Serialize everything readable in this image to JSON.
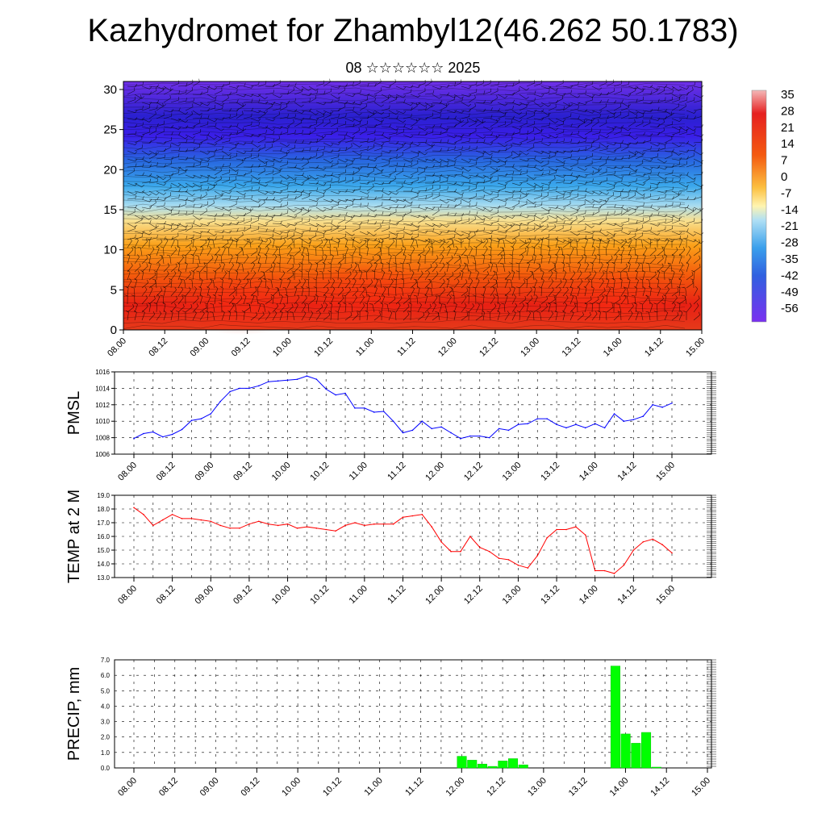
{
  "title": "Kazhydromet for Zhambyl12(46.262 50.1783)",
  "subtitle": "08 ☆☆☆☆☆☆ 2025",
  "time_labels": [
    "08.00",
    "08.12",
    "09.00",
    "09.12",
    "10.00",
    "10.12",
    "11.00",
    "11.12",
    "12.00",
    "12.12",
    "13.00",
    "13.12",
    "14.00",
    "14.12",
    "15.00"
  ],
  "colorbar_labels": [
    "35",
    "28",
    "21",
    "14",
    "7",
    "0",
    "-7",
    "-14",
    "-21",
    "-28",
    "-35",
    "-42",
    "-49",
    "-56"
  ],
  "colors": {
    "pmsl_line": "#0000ff",
    "temp_line": "#ff0000",
    "precip_bar": "#00ff00"
  },
  "chart_data": [
    {
      "type": "heatmap",
      "description_var": "temperature cross-section with wind barbs",
      "x_ticks": [
        "08.00",
        "08.12",
        "09.00",
        "09.12",
        "10.00",
        "10.12",
        "11.00",
        "11.12",
        "12.00",
        "12.12",
        "13.00",
        "13.12",
        "14.00",
        "14.12",
        "15.00"
      ],
      "y_ticks": [
        "0",
        "5",
        "10",
        "15",
        "20",
        "25",
        "30"
      ],
      "ylim": [
        0,
        31
      ],
      "colorbar": [
        "35",
        "28",
        "21",
        "14",
        "7",
        "0",
        "-7",
        "-14",
        "-21",
        "-28",
        "-35",
        "-42",
        "-49",
        "-56"
      ],
      "vertical_profile": [
        {
          "y": 0,
          "value": 24
        },
        {
          "y": 4,
          "value": 22
        },
        {
          "y": 8,
          "value": 15
        },
        {
          "y": 12,
          "value": 5
        },
        {
          "y": 15,
          "value": -10
        },
        {
          "y": 18,
          "value": -25
        },
        {
          "y": 21,
          "value": -40
        },
        {
          "y": 24,
          "value": -52
        },
        {
          "y": 26,
          "value": -58
        },
        {
          "y": 28,
          "value": -54
        },
        {
          "y": 31,
          "value": -52
        }
      ]
    },
    {
      "type": "line",
      "ylabel": "PMSL",
      "ylim": [
        1006,
        1016
      ],
      "y_ticks": [
        "1016",
        "1014",
        "1012",
        "1010",
        "1008",
        "1006"
      ],
      "x": [
        "08.00",
        "08.03",
        "08.06",
        "08.09",
        "08.12",
        "08.15",
        "08.18",
        "08.21",
        "09.00",
        "09.03",
        "09.06",
        "09.09",
        "09.12",
        "09.15",
        "09.18",
        "09.21",
        "10.00",
        "10.03",
        "10.06",
        "10.09",
        "10.12",
        "10.15",
        "10.18",
        "10.21",
        "11.00",
        "11.03",
        "11.06",
        "11.09",
        "11.12",
        "11.15",
        "11.18",
        "11.21",
        "12.00",
        "12.03",
        "12.06",
        "12.09",
        "12.12",
        "12.15",
        "12.18",
        "12.21",
        "13.00",
        "13.03",
        "13.06",
        "13.09",
        "13.12",
        "13.15",
        "13.18",
        "13.21",
        "14.00",
        "14.03",
        "14.06",
        "14.09",
        "14.12",
        "14.15",
        "14.18",
        "14.21",
        "15.00"
      ],
      "series": [
        {
          "values": [
            1007.9,
            1008.5,
            1008.7,
            1008.1,
            1008.4,
            1009.0,
            1010.1,
            1010.3,
            1010.9,
            1012.4,
            1013.6,
            1014.0,
            1014.0,
            1014.3,
            1014.8,
            1014.9,
            1015.0,
            1015.1,
            1015.5,
            1015.1,
            1013.9,
            1013.2,
            1013.4,
            1011.6,
            1011.6,
            1011.1,
            1011.2,
            1010.0,
            1008.6,
            1008.9,
            1010.0,
            1009.1,
            1009.3,
            1008.6,
            1007.9,
            1008.2,
            1008.2,
            1008.0,
            1009.1,
            1008.9,
            1009.6,
            1009.7,
            1010.3,
            1010.3,
            1009.6,
            1009.2,
            1009.6,
            1009.2,
            1009.7,
            1009.2,
            1010.9,
            1010.0,
            1010.2,
            1010.6,
            1012.0,
            1011.7,
            1012.2
          ]
        }
      ]
    },
    {
      "type": "line",
      "ylabel": "TEMP at 2 M",
      "ylim": [
        13.0,
        19.0
      ],
      "y_ticks": [
        "19.0",
        "18.0",
        "17.0",
        "16.0",
        "15.0",
        "14.0",
        "13.0"
      ],
      "x": [
        "08.00",
        "08.03",
        "08.06",
        "08.09",
        "08.12",
        "08.15",
        "08.18",
        "08.21",
        "09.00",
        "09.03",
        "09.06",
        "09.09",
        "09.12",
        "09.15",
        "09.18",
        "09.21",
        "10.00",
        "10.03",
        "10.06",
        "10.09",
        "10.12",
        "10.15",
        "10.18",
        "10.21",
        "11.00",
        "11.03",
        "11.06",
        "11.09",
        "11.12",
        "11.15",
        "11.18",
        "11.21",
        "12.00",
        "12.03",
        "12.06",
        "12.09",
        "12.12",
        "12.15",
        "12.18",
        "12.21",
        "13.00",
        "13.03",
        "13.06",
        "13.09",
        "13.12",
        "13.15",
        "13.18",
        "13.21",
        "14.00",
        "14.03",
        "14.06",
        "14.09",
        "14.12",
        "14.15",
        "14.18",
        "14.21",
        "15.00"
      ],
      "series": [
        {
          "values": [
            18.1,
            17.6,
            16.8,
            17.2,
            17.6,
            17.3,
            17.3,
            17.2,
            17.1,
            16.8,
            16.6,
            16.6,
            16.9,
            17.1,
            16.9,
            16.8,
            16.9,
            16.6,
            16.7,
            16.6,
            16.5,
            16.4,
            16.8,
            17.0,
            16.8,
            16.9,
            16.9,
            16.9,
            17.4,
            17.5,
            17.6,
            16.7,
            15.6,
            14.9,
            14.9,
            16.0,
            15.2,
            14.9,
            14.4,
            14.3,
            13.9,
            13.7,
            14.6,
            15.9,
            16.5,
            16.5,
            16.7,
            16.1,
            13.5,
            13.5,
            13.3,
            13.9,
            15.0,
            15.6,
            15.8,
            15.4,
            14.8
          ]
        }
      ]
    },
    {
      "type": "bar",
      "ylabel": "PRECIP, mm",
      "ylim": [
        0,
        7.0
      ],
      "y_ticks": [
        "7.0",
        "6.0",
        "5.0",
        "4.0",
        "3.0",
        "2.0",
        "1.0",
        "0.0"
      ],
      "categories": [
        "12.00",
        "12.03",
        "12.06",
        "12.09",
        "12.12",
        "12.15",
        "12.18",
        "13.21",
        "14.00",
        "14.03",
        "14.06",
        "14.09"
      ],
      "values": [
        0.75,
        0.5,
        0.25,
        0.1,
        0.45,
        0.6,
        0.2,
        6.6,
        2.2,
        1.6,
        2.3,
        0.05
      ]
    }
  ]
}
